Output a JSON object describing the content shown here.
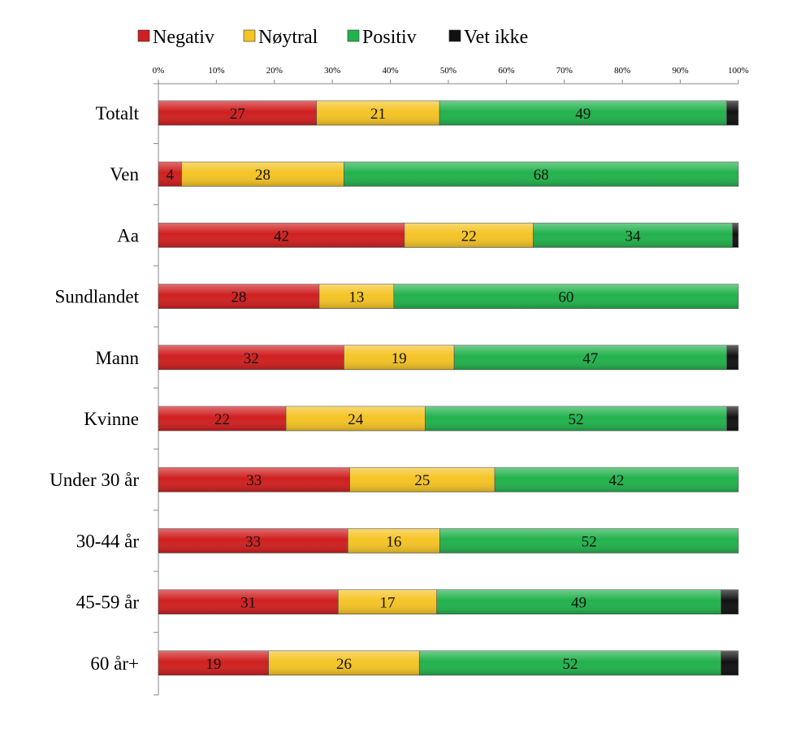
{
  "chart_data": {
    "type": "bar",
    "orientation": "horizontal",
    "stacked": "percent",
    "categories": [
      "Totalt",
      "Ven",
      "Aa",
      "Sundlandet",
      "Mann",
      "Kvinne",
      "Under 30 år",
      "30-44 år",
      "45-59 år",
      "60 år+"
    ],
    "series": [
      {
        "name": "Negativ",
        "color": "#d01f1f",
        "values": [
          27,
          4,
          42,
          28,
          32,
          22,
          33,
          33,
          31,
          19
        ]
      },
      {
        "name": "Nøytral",
        "color": "#f5c425",
        "values": [
          21,
          28,
          22,
          13,
          19,
          24,
          25,
          16,
          17,
          26
        ]
      },
      {
        "name": "Positiv",
        "color": "#22b24c",
        "values": [
          49,
          68,
          34,
          60,
          47,
          52,
          42,
          52,
          49,
          52
        ]
      },
      {
        "name": "Vet ikke",
        "color": "#111111",
        "values": [
          2,
          0,
          1,
          0,
          2,
          2,
          0,
          0,
          3,
          3
        ]
      }
    ],
    "x_ticks": [
      "0%",
      "10%",
      "20%",
      "30%",
      "40%",
      "50%",
      "60%",
      "70%",
      "80%",
      "90%",
      "100%"
    ],
    "xlim": [
      0,
      100
    ],
    "legend_position": "top",
    "grid": false
  }
}
